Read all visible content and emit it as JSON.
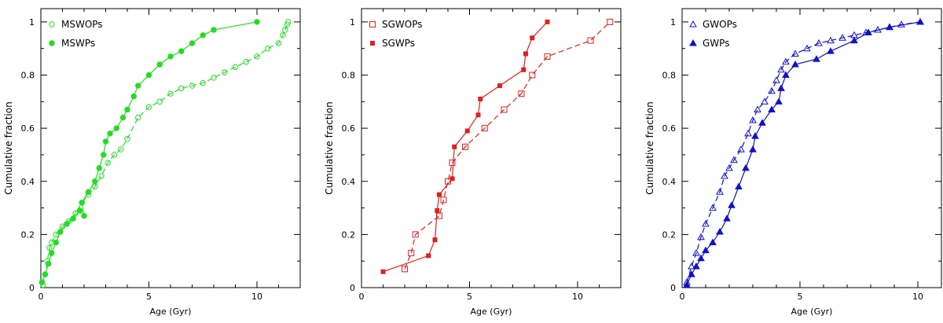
{
  "chart_data": [
    {
      "type": "line",
      "xlabel": "Age (Gyr)",
      "ylabel": "Cumulative fraction",
      "xlim": [
        0,
        12
      ],
      "ylim": [
        0,
        1.05
      ],
      "xticks": [
        "0",
        "5",
        "10"
      ],
      "yticks": [
        "0",
        "0.2",
        "0.4",
        "0.6",
        "0.8",
        "1"
      ],
      "color": "#22dd22",
      "series": [
        {
          "name": "MSWOPs",
          "marker": "circle-open",
          "dash": "dashed",
          "x": [
            0.1,
            0.2,
            0.3,
            0.4,
            0.5,
            0.7,
            1.0,
            1.3,
            1.6,
            1.9,
            2.2,
            2.5,
            2.8,
            3.1,
            3.4,
            3.7,
            4.0,
            4.5,
            5.0,
            5.5,
            6.0,
            6.5,
            7.0,
            7.5,
            8.0,
            8.5,
            9.0,
            9.5,
            10.0,
            10.5,
            11.0,
            11.2,
            11.3,
            11.4,
            11.45
          ],
          "y": [
            0.01,
            0.05,
            0.1,
            0.15,
            0.17,
            0.2,
            0.23,
            0.25,
            0.28,
            0.32,
            0.35,
            0.38,
            0.42,
            0.47,
            0.5,
            0.52,
            0.56,
            0.64,
            0.68,
            0.7,
            0.73,
            0.75,
            0.76,
            0.77,
            0.79,
            0.81,
            0.83,
            0.85,
            0.87,
            0.9,
            0.92,
            0.95,
            0.97,
            0.99,
            1.0
          ]
        },
        {
          "name": "MSWPs",
          "marker": "circle-filled",
          "dash": "solid",
          "x": [
            0.05,
            0.2,
            0.35,
            0.5,
            0.7,
            0.9,
            1.2,
            1.5,
            1.8,
            2.0,
            1.9,
            2.2,
            2.5,
            2.7,
            2.9,
            3.0,
            3.2,
            3.5,
            3.8,
            4.0,
            4.3,
            4.5,
            5.0,
            5.5,
            6.0,
            6.5,
            7.0,
            7.5,
            8.0,
            10.0
          ],
          "y": [
            0.02,
            0.05,
            0.09,
            0.13,
            0.17,
            0.21,
            0.24,
            0.26,
            0.29,
            0.27,
            0.32,
            0.36,
            0.4,
            0.45,
            0.5,
            0.55,
            0.58,
            0.6,
            0.64,
            0.67,
            0.72,
            0.76,
            0.8,
            0.84,
            0.87,
            0.89,
            0.92,
            0.95,
            0.97,
            1.0
          ]
        }
      ]
    },
    {
      "type": "line",
      "xlabel": "Age (Gyr)",
      "ylabel": "Cumulative fraction",
      "xlim": [
        0,
        12
      ],
      "ylim": [
        0,
        1.05
      ],
      "xticks": [
        "0",
        "5",
        "10"
      ],
      "yticks": [
        "0",
        "0.2",
        "0.4",
        "0.6",
        "0.8",
        "1"
      ],
      "color": "#e02020",
      "series": [
        {
          "name": "SGWOPs",
          "marker": "square-open",
          "dash": "dashed",
          "x": [
            2.0,
            2.3,
            2.5,
            3.6,
            3.8,
            4.0,
            4.2,
            4.8,
            5.7,
            6.6,
            7.4,
            7.9,
            8.6,
            10.6,
            11.5
          ],
          "y": [
            0.07,
            0.13,
            0.2,
            0.27,
            0.33,
            0.4,
            0.47,
            0.53,
            0.6,
            0.67,
            0.73,
            0.8,
            0.87,
            0.93,
            1.0
          ]
        },
        {
          "name": "SGWPs",
          "marker": "square-filled",
          "dash": "solid",
          "x": [
            1.0,
            3.1,
            3.4,
            3.5,
            3.6,
            4.2,
            4.3,
            4.9,
            5.4,
            5.5,
            6.4,
            7.5,
            7.6,
            7.9,
            8.6
          ],
          "y": [
            0.06,
            0.12,
            0.18,
            0.29,
            0.35,
            0.41,
            0.53,
            0.59,
            0.65,
            0.71,
            0.76,
            0.82,
            0.88,
            0.94,
            1.0
          ]
        }
      ]
    },
    {
      "type": "line",
      "xlabel": "Age (Gyr)",
      "ylabel": "Cumulative fraction",
      "xlim": [
        0,
        11
      ],
      "ylim": [
        0,
        1.05
      ],
      "xticks": [
        "0",
        "5",
        "10"
      ],
      "yticks": [
        "0",
        "0.2",
        "0.4",
        "0.6",
        "0.8",
        "1"
      ],
      "color": "#1010cc",
      "series": [
        {
          "name": "GWOPs",
          "marker": "triangle-open",
          "dash": "dashed",
          "x": [
            0.2,
            0.4,
            0.6,
            0.8,
            1.0,
            1.3,
            1.6,
            1.8,
            2.0,
            2.2,
            2.5,
            2.8,
            3.0,
            3.2,
            3.5,
            3.8,
            4.0,
            4.2,
            4.4,
            4.8,
            5.3,
            5.8,
            6.3,
            6.8,
            7.3,
            7.8,
            8.3,
            8.8,
            9.3,
            10.1
          ],
          "y": [
            0.02,
            0.08,
            0.13,
            0.19,
            0.24,
            0.3,
            0.36,
            0.42,
            0.45,
            0.48,
            0.52,
            0.58,
            0.63,
            0.67,
            0.7,
            0.74,
            0.78,
            0.82,
            0.85,
            0.88,
            0.9,
            0.92,
            0.93,
            0.94,
            0.95,
            0.96,
            0.97,
            0.98,
            0.99,
            1.0
          ]
        },
        {
          "name": "GWPs",
          "marker": "triangle-filled",
          "dash": "solid",
          "x": [
            0.2,
            0.4,
            0.6,
            0.8,
            1.0,
            1.3,
            1.6,
            1.9,
            2.1,
            2.4,
            2.7,
            3.0,
            3.1,
            3.4,
            3.8,
            4.1,
            4.2,
            4.4,
            4.8,
            5.7,
            6.3,
            7.3,
            7.9,
            8.8,
            10.1
          ],
          "y": [
            0.01,
            0.05,
            0.08,
            0.11,
            0.14,
            0.17,
            0.21,
            0.26,
            0.31,
            0.38,
            0.45,
            0.52,
            0.57,
            0.62,
            0.67,
            0.7,
            0.75,
            0.8,
            0.84,
            0.86,
            0.89,
            0.93,
            0.96,
            0.98,
            1.0
          ]
        }
      ]
    }
  ]
}
